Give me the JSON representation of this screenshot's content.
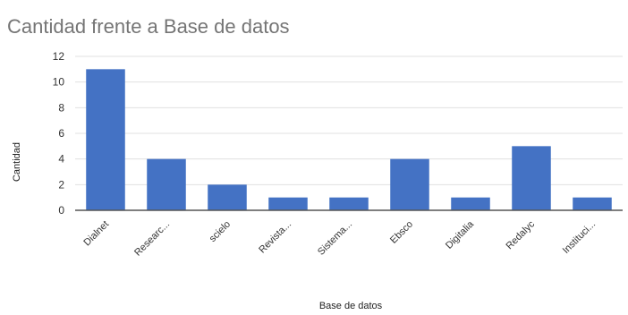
{
  "chart_data": {
    "type": "bar",
    "title": "Cantidad frente a Base de datos",
    "xlabel": "Base de datos",
    "ylabel": "Cantidad",
    "categories": [
      "Dialnet",
      "Researc...",
      "scielo",
      "Revista...",
      "Sistema...",
      "Ebsco",
      "Digitalia",
      "Redalyc",
      "Instituci..."
    ],
    "values": [
      11,
      4,
      2,
      1,
      1,
      4,
      1,
      5,
      1
    ],
    "ylim": [
      0,
      12
    ],
    "yticks": [
      0,
      2,
      4,
      6,
      8,
      10,
      12
    ],
    "grid": true,
    "bar_color": "#4472C4"
  }
}
